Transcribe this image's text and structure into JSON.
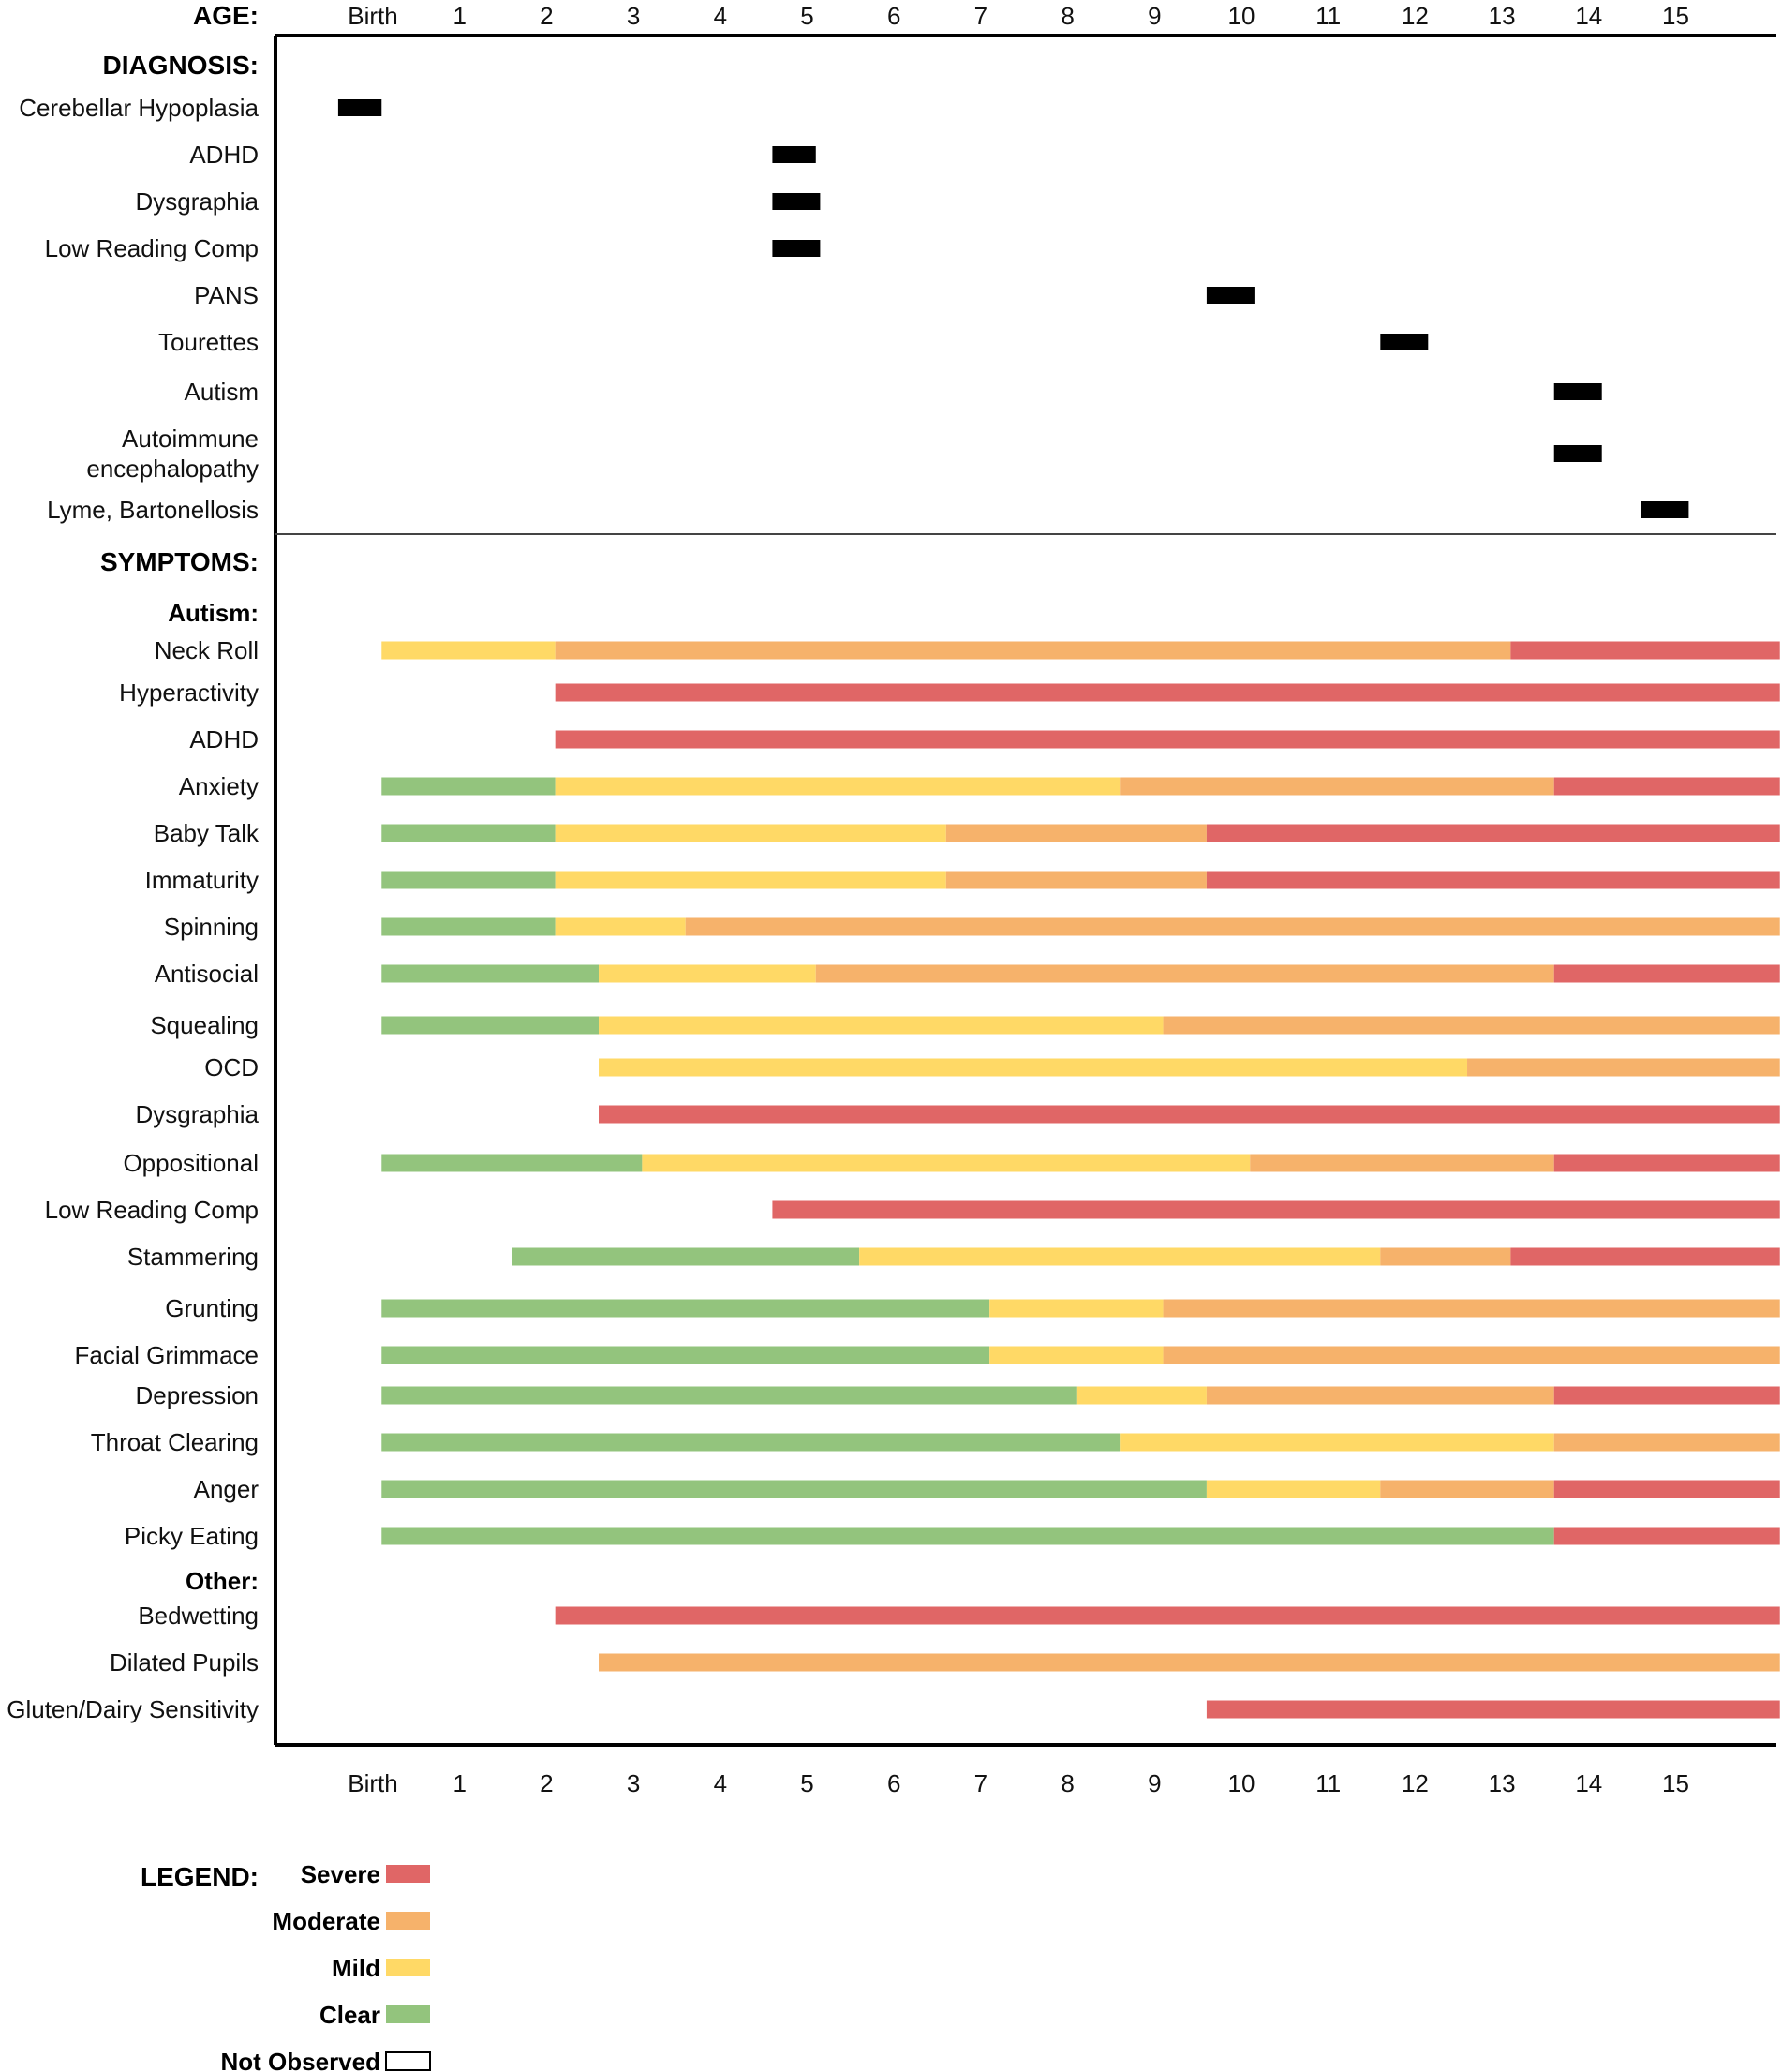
{
  "chart_data": {
    "type": "timeline",
    "x_axis": {
      "label": "AGE:",
      "ticks": [
        {
          "label": "Birth",
          "value": 0
        },
        {
          "label": "1",
          "value": 1
        },
        {
          "label": "2",
          "value": 2
        },
        {
          "label": "3",
          "value": 3
        },
        {
          "label": "4",
          "value": 4
        },
        {
          "label": "5",
          "value": 5
        },
        {
          "label": "6",
          "value": 6
        },
        {
          "label": "7",
          "value": 7
        },
        {
          "label": "8",
          "value": 8
        },
        {
          "label": "9",
          "value": 9
        },
        {
          "label": "10",
          "value": 10
        },
        {
          "label": "11",
          "value": 11
        },
        {
          "label": "12",
          "value": 12
        },
        {
          "label": "13",
          "value": 13
        },
        {
          "label": "14",
          "value": 14
        },
        {
          "label": "15",
          "value": 15
        }
      ],
      "range": [
        -0.8,
        16.2
      ]
    },
    "diagnosis": {
      "title": "DIAGNOSIS:",
      "items": [
        {
          "label": "Cerebellar Hypoplasia",
          "start": -0.4,
          "end": 0.1
        },
        {
          "label": "ADHD",
          "start": 4.6,
          "end": 5.1
        },
        {
          "label": "Dysgraphia",
          "start": 4.6,
          "end": 5.15
        },
        {
          "label": "Low Reading Comp",
          "start": 4.6,
          "end": 5.15
        },
        {
          "label": "PANS",
          "start": 9.6,
          "end": 10.15
        },
        {
          "label": "Tourettes",
          "start": 11.6,
          "end": 12.15
        },
        {
          "label": "Autism",
          "start": 13.6,
          "end": 14.15
        },
        {
          "label": "Autoimmune\nencephalopathy",
          "start": 13.6,
          "end": 14.15
        },
        {
          "label": "Lyme, Bartonellosis",
          "start": 14.6,
          "end": 15.15
        }
      ]
    },
    "symptoms": {
      "title": "SYMPTOMS:",
      "groups": [
        {
          "title": "Autism:",
          "items": [
            {
              "label": "Neck Roll",
              "segments": [
                {
                  "level": "Mild",
                  "start": 0.1,
                  "end": 2.1
                },
                {
                  "level": "Moderate",
                  "start": 2.1,
                  "end": 13.1
                },
                {
                  "level": "Severe",
                  "start": 13.1,
                  "end": 16.2
                }
              ]
            },
            {
              "label": "Hyperactivity",
              "segments": [
                {
                  "level": "Severe",
                  "start": 2.1,
                  "end": 16.2
                }
              ]
            },
            {
              "label": "ADHD",
              "segments": [
                {
                  "level": "Severe",
                  "start": 2.1,
                  "end": 16.2
                }
              ]
            },
            {
              "label": "Anxiety",
              "segments": [
                {
                  "level": "Clear",
                  "start": 0.1,
                  "end": 2.1
                },
                {
                  "level": "Mild",
                  "start": 2.1,
                  "end": 8.6
                },
                {
                  "level": "Moderate",
                  "start": 8.6,
                  "end": 13.6
                },
                {
                  "level": "Severe",
                  "start": 13.6,
                  "end": 16.2
                }
              ]
            },
            {
              "label": "Baby Talk",
              "segments": [
                {
                  "level": "Clear",
                  "start": 0.1,
                  "end": 2.1
                },
                {
                  "level": "Mild",
                  "start": 2.1,
                  "end": 6.6
                },
                {
                  "level": "Moderate",
                  "start": 6.6,
                  "end": 9.6
                },
                {
                  "level": "Severe",
                  "start": 9.6,
                  "end": 16.2
                }
              ]
            },
            {
              "label": "Immaturity",
              "segments": [
                {
                  "level": "Clear",
                  "start": 0.1,
                  "end": 2.1
                },
                {
                  "level": "Mild",
                  "start": 2.1,
                  "end": 6.6
                },
                {
                  "level": "Moderate",
                  "start": 6.6,
                  "end": 9.6
                },
                {
                  "level": "Severe",
                  "start": 9.6,
                  "end": 16.2
                }
              ]
            },
            {
              "label": "Spinning",
              "segments": [
                {
                  "level": "Clear",
                  "start": 0.1,
                  "end": 2.1
                },
                {
                  "level": "Mild",
                  "start": 2.1,
                  "end": 3.6
                },
                {
                  "level": "Moderate",
                  "start": 3.6,
                  "end": 16.2
                }
              ]
            },
            {
              "label": "Antisocial",
              "segments": [
                {
                  "level": "Clear",
                  "start": 0.1,
                  "end": 2.6
                },
                {
                  "level": "Mild",
                  "start": 2.6,
                  "end": 5.1
                },
                {
                  "level": "Moderate",
                  "start": 5.1,
                  "end": 13.6
                },
                {
                  "level": "Severe",
                  "start": 13.6,
                  "end": 16.2
                }
              ]
            },
            {
              "label": "Squealing",
              "segments": [
                {
                  "level": "Clear",
                  "start": 0.1,
                  "end": 2.6
                },
                {
                  "level": "Mild",
                  "start": 2.6,
                  "end": 9.1
                },
                {
                  "level": "Moderate",
                  "start": 9.1,
                  "end": 16.2
                }
              ]
            },
            {
              "label": "OCD",
              "segments": [
                {
                  "level": "Mild",
                  "start": 2.6,
                  "end": 12.6
                },
                {
                  "level": "Moderate",
                  "start": 12.6,
                  "end": 16.2
                }
              ]
            },
            {
              "label": "Dysgraphia",
              "segments": [
                {
                  "level": "Severe",
                  "start": 2.6,
                  "end": 16.2
                }
              ]
            },
            {
              "label": "Oppositional",
              "segments": [
                {
                  "level": "Clear",
                  "start": 0.1,
                  "end": 3.1
                },
                {
                  "level": "Mild",
                  "start": 3.1,
                  "end": 10.1
                },
                {
                  "level": "Moderate",
                  "start": 10.1,
                  "end": 13.6
                },
                {
                  "level": "Severe",
                  "start": 13.6,
                  "end": 16.2
                }
              ]
            },
            {
              "label": "Low Reading Comp",
              "segments": [
                {
                  "level": "Severe",
                  "start": 4.6,
                  "end": 16.2
                }
              ]
            },
            {
              "label": "Stammering",
              "segments": [
                {
                  "level": "Clear",
                  "start": 1.6,
                  "end": 5.6
                },
                {
                  "level": "Mild",
                  "start": 5.6,
                  "end": 11.6
                },
                {
                  "level": "Moderate",
                  "start": 11.6,
                  "end": 13.1
                },
                {
                  "level": "Severe",
                  "start": 13.1,
                  "end": 16.2
                }
              ]
            },
            {
              "label": "Grunting",
              "segments": [
                {
                  "level": "Clear",
                  "start": 0.1,
                  "end": 7.1
                },
                {
                  "level": "Mild",
                  "start": 7.1,
                  "end": 9.1
                },
                {
                  "level": "Moderate",
                  "start": 9.1,
                  "end": 16.2
                }
              ]
            },
            {
              "label": "Facial Grimmace",
              "segments": [
                {
                  "level": "Clear",
                  "start": 0.1,
                  "end": 7.1
                },
                {
                  "level": "Mild",
                  "start": 7.1,
                  "end": 9.1
                },
                {
                  "level": "Moderate",
                  "start": 9.1,
                  "end": 16.2
                }
              ]
            },
            {
              "label": "Depression",
              "segments": [
                {
                  "level": "Clear",
                  "start": 0.1,
                  "end": 8.1
                },
                {
                  "level": "Mild",
                  "start": 8.1,
                  "end": 9.6
                },
                {
                  "level": "Moderate",
                  "start": 9.6,
                  "end": 13.6
                },
                {
                  "level": "Severe",
                  "start": 13.6,
                  "end": 16.2
                }
              ]
            },
            {
              "label": "Throat Clearing",
              "segments": [
                {
                  "level": "Clear",
                  "start": 0.1,
                  "end": 8.6
                },
                {
                  "level": "Mild",
                  "start": 8.6,
                  "end": 13.6
                },
                {
                  "level": "Moderate",
                  "start": 13.6,
                  "end": 16.2
                }
              ]
            },
            {
              "label": "Anger",
              "segments": [
                {
                  "level": "Clear",
                  "start": 0.1,
                  "end": 9.6
                },
                {
                  "level": "Mild",
                  "start": 9.6,
                  "end": 11.6
                },
                {
                  "level": "Moderate",
                  "start": 11.6,
                  "end": 13.6
                },
                {
                  "level": "Severe",
                  "start": 13.6,
                  "end": 16.2
                }
              ]
            },
            {
              "label": "Picky Eating",
              "segments": [
                {
                  "level": "Clear",
                  "start": 0.1,
                  "end": 13.6
                },
                {
                  "level": "Severe",
                  "start": 13.6,
                  "end": 16.2
                }
              ]
            }
          ]
        },
        {
          "title": "Other:",
          "items": [
            {
              "label": "Bedwetting",
              "segments": [
                {
                  "level": "Severe",
                  "start": 2.1,
                  "end": 16.2
                }
              ]
            },
            {
              "label": "Dilated Pupils",
              "segments": [
                {
                  "level": "Moderate",
                  "start": 2.6,
                  "end": 16.2
                }
              ]
            },
            {
              "label": "Gluten/Dairy Sensitivity",
              "segments": [
                {
                  "level": "Severe",
                  "start": 9.6,
                  "end": 16.2
                }
              ]
            }
          ]
        }
      ]
    },
    "legend": {
      "title": "LEGEND:",
      "entries": [
        {
          "label": "Severe",
          "color": "#e06666"
        },
        {
          "label": "Moderate",
          "color": "#f6b26b"
        },
        {
          "label": "Mild",
          "color": "#ffd966"
        },
        {
          "label": "Clear",
          "color": "#93c47d"
        },
        {
          "label": "Not Observed",
          "color": "#ffffff"
        }
      ]
    },
    "colors": {
      "Severe": "#e06666",
      "Moderate": "#f6b26b",
      "Mild": "#ffd966",
      "Clear": "#93c47d",
      "diagnosis_bar": "#000000"
    }
  }
}
